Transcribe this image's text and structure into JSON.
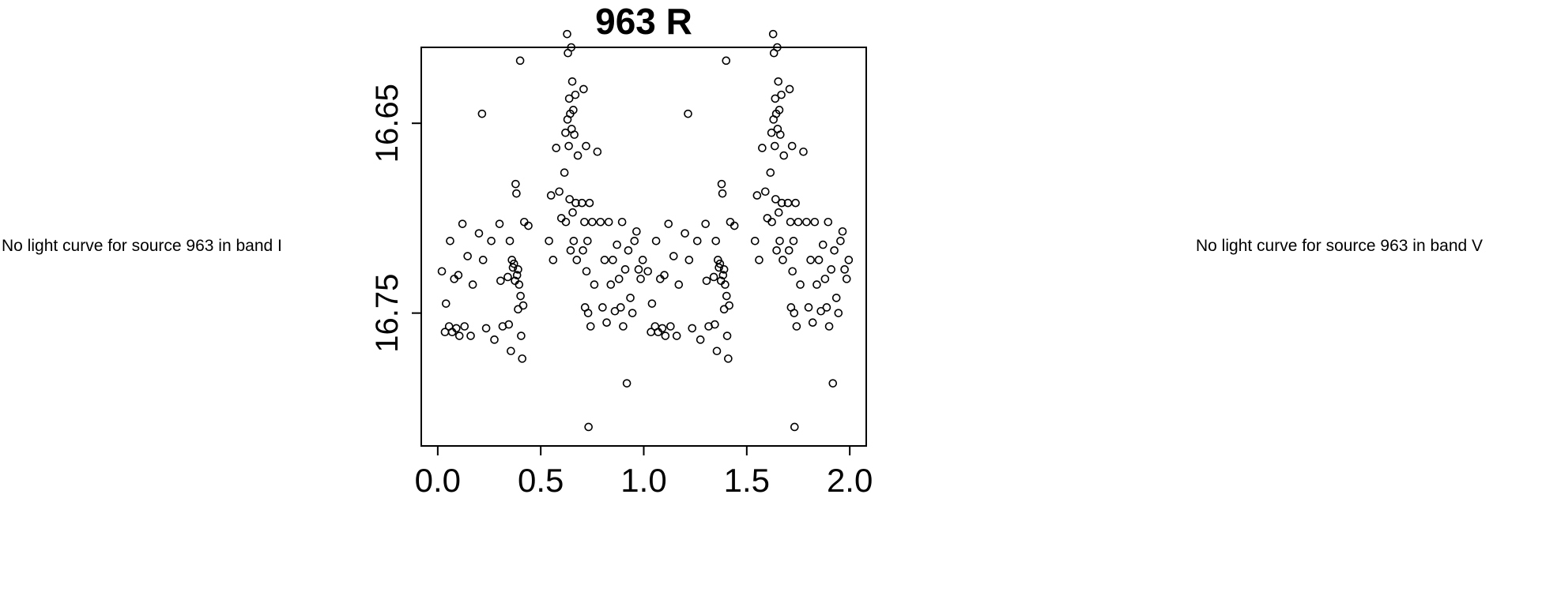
{
  "left_note": {
    "text": "No light curve for source 963 in band I"
  },
  "right_note": {
    "text": "No light curve for source 963 in band V"
  },
  "chart_data": {
    "type": "scatter",
    "title": "963 R",
    "xlabel": "",
    "ylabel": "",
    "marker": "open-circle",
    "marker_color": "#000000",
    "background": "#ffffff",
    "grid": false,
    "legend": false,
    "x_tick_labels": [
      "0.0",
      "0.5",
      "1.0",
      "1.5",
      "2.0"
    ],
    "x_ticks": [
      0.0,
      0.5,
      1.0,
      1.5,
      2.0
    ],
    "y_tick_labels": [
      "16.65",
      "16.75"
    ],
    "y_ticks": [
      16.65,
      16.75
    ],
    "xlim": [
      -0.08,
      2.08
    ],
    "ylim": [
      16.61,
      16.82
    ],
    "y_axis_inverted": true,
    "phase_folded_repeat": true,
    "repeat_offset": 1.0,
    "points_phase_mag": [
      [
        0.02,
        16.728
      ],
      [
        0.035,
        16.76
      ],
      [
        0.04,
        16.745
      ],
      [
        0.055,
        16.757
      ],
      [
        0.06,
        16.712
      ],
      [
        0.07,
        16.76
      ],
      [
        0.08,
        16.732
      ],
      [
        0.09,
        16.758
      ],
      [
        0.1,
        16.73
      ],
      [
        0.105,
        16.762
      ],
      [
        0.12,
        16.703
      ],
      [
        0.13,
        16.757
      ],
      [
        0.145,
        16.72
      ],
      [
        0.16,
        16.762
      ],
      [
        0.17,
        16.735
      ],
      [
        0.2,
        16.708
      ],
      [
        0.215,
        16.645
      ],
      [
        0.22,
        16.722
      ],
      [
        0.235,
        16.758
      ],
      [
        0.26,
        16.712
      ],
      [
        0.275,
        16.764
      ],
      [
        0.3,
        16.703
      ],
      [
        0.305,
        16.733
      ],
      [
        0.315,
        16.757
      ],
      [
        0.34,
        16.731
      ],
      [
        0.345,
        16.756
      ],
      [
        0.35,
        16.712
      ],
      [
        0.355,
        16.77
      ],
      [
        0.36,
        16.722
      ],
      [
        0.365,
        16.726
      ],
      [
        0.37,
        16.724
      ],
      [
        0.375,
        16.733
      ],
      [
        0.378,
        16.682
      ],
      [
        0.382,
        16.687
      ],
      [
        0.385,
        16.73
      ],
      [
        0.39,
        16.727
      ],
      [
        0.39,
        16.748
      ],
      [
        0.395,
        16.735
      ],
      [
        0.4,
        16.617
      ],
      [
        0.402,
        16.741
      ],
      [
        0.405,
        16.762
      ],
      [
        0.41,
        16.774
      ],
      [
        0.415,
        16.746
      ],
      [
        0.42,
        16.702
      ],
      [
        0.44,
        16.704
      ],
      [
        0.54,
        16.712
      ],
      [
        0.55,
        16.688
      ],
      [
        0.56,
        16.722
      ],
      [
        0.575,
        16.663
      ],
      [
        0.59,
        16.686
      ],
      [
        0.6,
        16.7
      ],
      [
        0.615,
        16.676
      ],
      [
        0.62,
        16.655
      ],
      [
        0.622,
        16.702
      ],
      [
        0.628,
        16.603
      ],
      [
        0.63,
        16.648
      ],
      [
        0.632,
        16.613
      ],
      [
        0.636,
        16.662
      ],
      [
        0.638,
        16.637
      ],
      [
        0.64,
        16.69
      ],
      [
        0.643,
        16.645
      ],
      [
        0.645,
        16.717
      ],
      [
        0.648,
        16.61
      ],
      [
        0.65,
        16.653
      ],
      [
        0.653,
        16.628
      ],
      [
        0.655,
        16.697
      ],
      [
        0.658,
        16.643
      ],
      [
        0.66,
        16.712
      ],
      [
        0.663,
        16.656
      ],
      [
        0.668,
        16.635
      ],
      [
        0.67,
        16.692
      ],
      [
        0.675,
        16.722
      ],
      [
        0.68,
        16.667
      ],
      [
        0.7,
        16.692
      ],
      [
        0.705,
        16.717
      ],
      [
        0.708,
        16.632
      ],
      [
        0.712,
        16.702
      ],
      [
        0.715,
        16.747
      ],
      [
        0.72,
        16.662
      ],
      [
        0.722,
        16.728
      ],
      [
        0.727,
        16.712
      ],
      [
        0.73,
        16.75
      ],
      [
        0.732,
        16.81
      ],
      [
        0.737,
        16.692
      ],
      [
        0.742,
        16.757
      ],
      [
        0.75,
        16.702
      ],
      [
        0.76,
        16.735
      ],
      [
        0.775,
        16.665
      ],
      [
        0.79,
        16.702
      ],
      [
        0.8,
        16.747
      ],
      [
        0.81,
        16.722
      ],
      [
        0.82,
        16.755
      ],
      [
        0.83,
        16.702
      ],
      [
        0.84,
        16.735
      ],
      [
        0.85,
        16.722
      ],
      [
        0.86,
        16.749
      ],
      [
        0.87,
        16.714
      ],
      [
        0.88,
        16.732
      ],
      [
        0.888,
        16.747
      ],
      [
        0.895,
        16.702
      ],
      [
        0.9,
        16.757
      ],
      [
        0.91,
        16.727
      ],
      [
        0.918,
        16.787
      ],
      [
        0.925,
        16.717
      ],
      [
        0.935,
        16.742
      ],
      [
        0.945,
        16.75
      ],
      [
        0.955,
        16.712
      ],
      [
        0.965,
        16.707
      ],
      [
        0.975,
        16.727
      ],
      [
        0.985,
        16.732
      ],
      [
        0.995,
        16.722
      ]
    ]
  }
}
